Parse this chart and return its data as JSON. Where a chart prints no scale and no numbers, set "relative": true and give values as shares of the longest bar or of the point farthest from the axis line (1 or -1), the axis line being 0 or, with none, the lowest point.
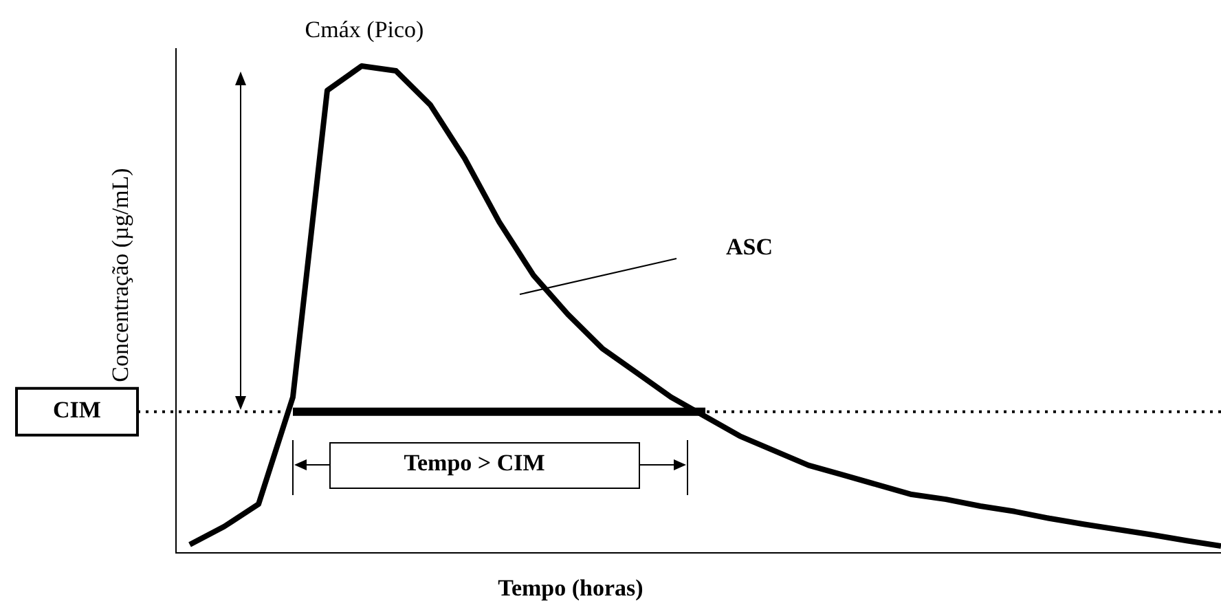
{
  "chart_data": {
    "type": "line",
    "relative": true,
    "xlabel": "Tempo (horas)",
    "ylabel": "Concentração (µg/mL)",
    "categories": [
      null,
      null,
      null,
      null,
      null,
      null,
      null,
      null,
      null,
      null,
      null,
      null,
      null,
      null,
      null,
      null,
      null,
      null,
      null,
      null,
      null,
      null,
      null,
      null,
      null,
      null,
      null,
      null,
      null,
      null,
      null
    ],
    "series": [
      {
        "color": "#000000",
        "values": [
          0.017,
          0.054,
          0.1,
          0.32,
          0.95,
          1,
          0.99,
          0.92,
          0.81,
          0.68,
          0.57,
          0.49,
          0.42,
          0.37,
          0.32,
          0.28,
          0.24,
          0.21,
          0.18,
          0.16,
          0.14,
          0.12,
          0.11,
          0.096,
          0.085,
          0.071,
          0.059,
          0.048,
          0.037,
          0.025,
          0.014
        ]
      },
      {
        "color": "#000000",
        "values": [
          null,
          null,
          null,
          0.29,
          0.29,
          0.29,
          0.29,
          0.29,
          0.29,
          0.29,
          0.29,
          0.29,
          0.29,
          0.29,
          0.29,
          0.29,
          null,
          null,
          null,
          null,
          null,
          null,
          null,
          null,
          null,
          null,
          null,
          null,
          null,
          null,
          null
        ]
      }
    ],
    "ref_lines": [
      {
        "axis": "y",
        "value": 0.29,
        "label": "CIM",
        "line_style": "dotted",
        "color": "#000000"
      }
    ],
    "annotations": [
      "Cmáx (Pico)",
      "ASC",
      "Tempo > CIM"
    ],
    "grid": false,
    "legend": false,
    "marker": "none",
    "line_style": "solid"
  }
}
